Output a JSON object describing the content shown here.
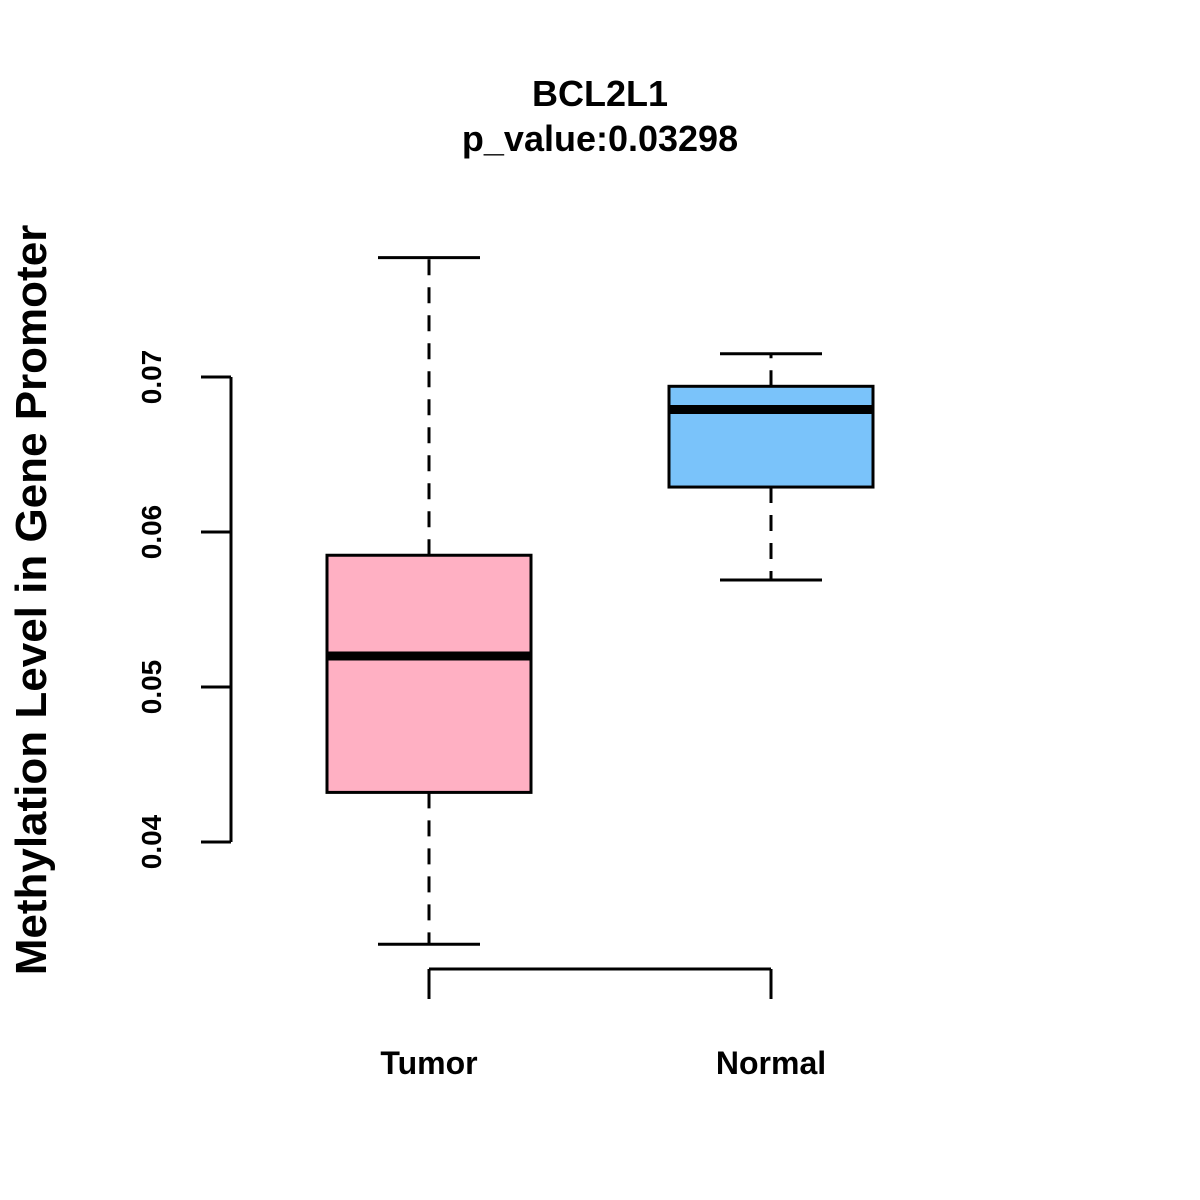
{
  "chart_data": {
    "type": "boxplot",
    "title": "BCL2L1",
    "subtitle": "p_value:0.03298",
    "xlabel": "",
    "ylabel": "Methylation Level in Gene Promoter",
    "yticks": [
      0.04,
      0.05,
      0.06,
      0.07
    ],
    "ytick_labels": [
      "0.04",
      "0.05",
      "0.06",
      "0.07"
    ],
    "categories": [
      "Tumor",
      "Normal"
    ],
    "boxes": [
      {
        "category": "Tumor",
        "min": 0.0334,
        "q1": 0.0432,
        "median": 0.052,
        "q3": 0.0585,
        "max": 0.0777,
        "color": "#ffb0c3"
      },
      {
        "category": "Normal",
        "min": 0.0569,
        "q1": 0.0629,
        "median": 0.0679,
        "q3": 0.0694,
        "max": 0.0715,
        "color": "#7ac3fa"
      }
    ],
    "grid": false,
    "legend": "none"
  }
}
